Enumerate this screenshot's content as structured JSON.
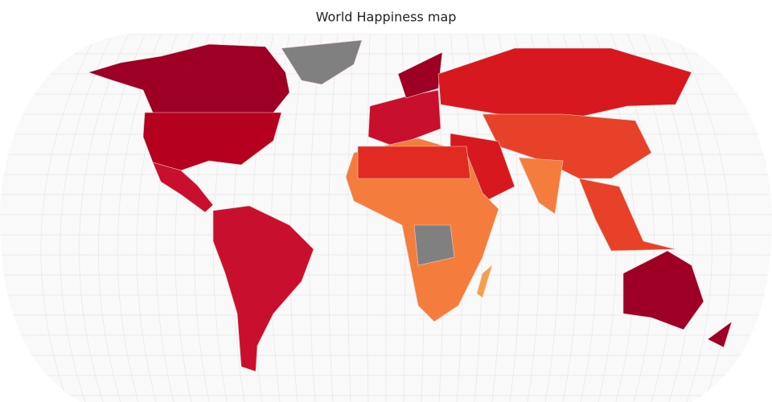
{
  "title": "World Happiness map"
}
